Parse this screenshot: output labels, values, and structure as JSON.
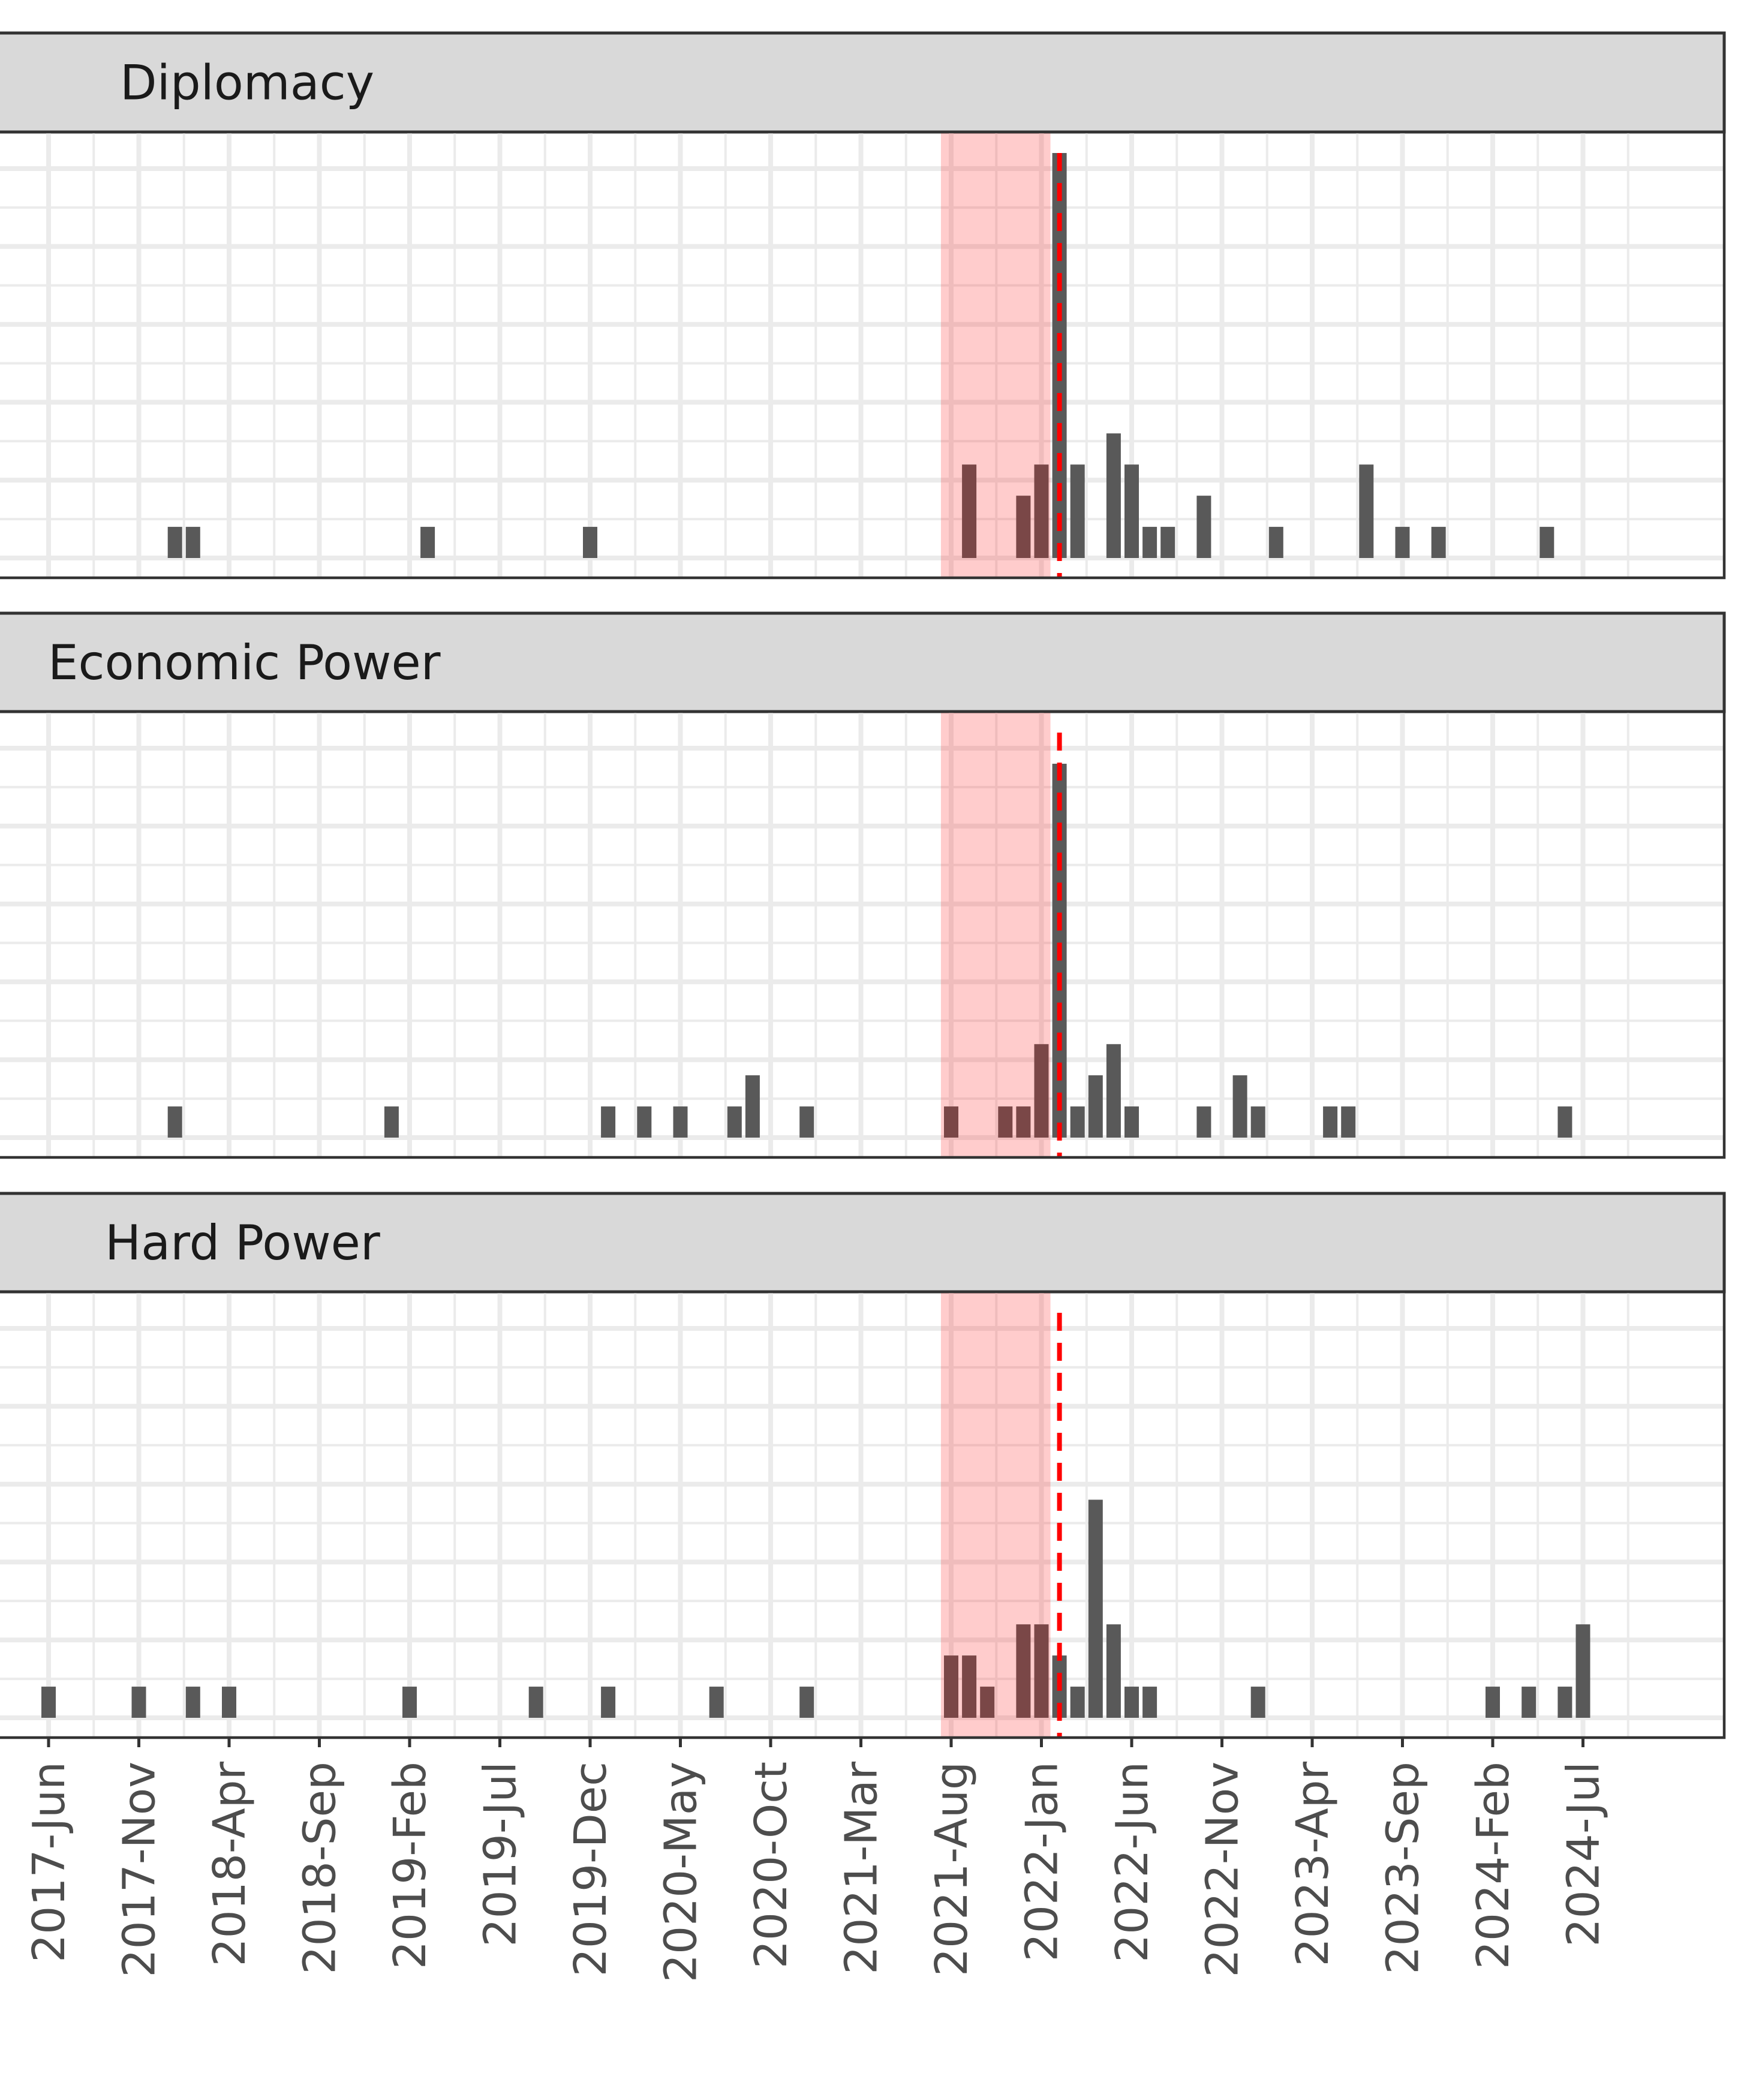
{
  "chart_data": {
    "type": "bar",
    "x_axis": {
      "ticks": [
        "2017-Jun",
        "2017-Nov",
        "2018-Apr",
        "2018-Sep",
        "2019-Feb",
        "2019-Jul",
        "2019-Dec",
        "2020-May",
        "2020-Oct",
        "2021-Mar",
        "2021-Aug",
        "2022-Jan",
        "2022-Jun",
        "2022-Nov",
        "2023-Apr",
        "2023-Sep",
        "2024-Feb",
        "2024-Jul"
      ],
      "range": [
        "2017-04",
        "2025-03"
      ]
    },
    "y_range": [
      0,
      13
    ],
    "grid": true,
    "shaded_region": {
      "start": "2021-08",
      "end": "2022-02",
      "color": "#ff0000"
    },
    "reference_line": {
      "x": "2022-02",
      "color": "#ff0000",
      "style": "dashed"
    },
    "facets": [
      {
        "label": "Diplomacy",
        "bars": [
          {
            "x": "2018-01",
            "y": 1
          },
          {
            "x": "2018-02",
            "y": 1
          },
          {
            "x": "2019-03",
            "y": 1
          },
          {
            "x": "2019-12",
            "y": 1
          },
          {
            "x": "2021-09",
            "y": 3
          },
          {
            "x": "2021-12",
            "y": 2
          },
          {
            "x": "2022-01",
            "y": 3
          },
          {
            "x": "2022-02",
            "y": 13
          },
          {
            "x": "2022-03",
            "y": 3
          },
          {
            "x": "2022-05",
            "y": 4
          },
          {
            "x": "2022-06",
            "y": 3
          },
          {
            "x": "2022-07",
            "y": 1
          },
          {
            "x": "2022-08",
            "y": 1
          },
          {
            "x": "2022-10",
            "y": 2
          },
          {
            "x": "2023-02",
            "y": 1
          },
          {
            "x": "2023-07",
            "y": 3
          },
          {
            "x": "2023-09",
            "y": 1
          },
          {
            "x": "2023-11",
            "y": 1
          },
          {
            "x": "2024-05",
            "y": 1
          }
        ]
      },
      {
        "label": "Economic Power",
        "bars": [
          {
            "x": "2018-01",
            "y": 1
          },
          {
            "x": "2019-01",
            "y": 1
          },
          {
            "x": "2020-01",
            "y": 1
          },
          {
            "x": "2020-03",
            "y": 1
          },
          {
            "x": "2020-05",
            "y": 1
          },
          {
            "x": "2020-08",
            "y": 1
          },
          {
            "x": "2020-09",
            "y": 2
          },
          {
            "x": "2020-12",
            "y": 1
          },
          {
            "x": "2021-08",
            "y": 1
          },
          {
            "x": "2021-11",
            "y": 1
          },
          {
            "x": "2021-12",
            "y": 1
          },
          {
            "x": "2022-01",
            "y": 3
          },
          {
            "x": "2022-02",
            "y": 12
          },
          {
            "x": "2022-03",
            "y": 1
          },
          {
            "x": "2022-04",
            "y": 2
          },
          {
            "x": "2022-05",
            "y": 3
          },
          {
            "x": "2022-06",
            "y": 1
          },
          {
            "x": "2022-10",
            "y": 1
          },
          {
            "x": "2022-12",
            "y": 2
          },
          {
            "x": "2023-01",
            "y": 1
          },
          {
            "x": "2023-05",
            "y": 1
          },
          {
            "x": "2023-06",
            "y": 1
          },
          {
            "x": "2024-06",
            "y": 1
          }
        ]
      },
      {
        "label": "Hard Power",
        "bars": [
          {
            "x": "2017-06",
            "y": 1
          },
          {
            "x": "2017-11",
            "y": 1
          },
          {
            "x": "2018-02",
            "y": 1
          },
          {
            "x": "2018-04",
            "y": 1
          },
          {
            "x": "2019-02",
            "y": 1
          },
          {
            "x": "2019-09",
            "y": 1
          },
          {
            "x": "2020-01",
            "y": 1
          },
          {
            "x": "2020-07",
            "y": 1
          },
          {
            "x": "2020-12",
            "y": 1
          },
          {
            "x": "2021-08",
            "y": 2
          },
          {
            "x": "2021-09",
            "y": 2
          },
          {
            "x": "2021-10",
            "y": 1
          },
          {
            "x": "2021-12",
            "y": 3
          },
          {
            "x": "2022-01",
            "y": 3
          },
          {
            "x": "2022-02",
            "y": 2
          },
          {
            "x": "2022-03",
            "y": 1
          },
          {
            "x": "2022-04",
            "y": 7
          },
          {
            "x": "2022-05",
            "y": 3
          },
          {
            "x": "2022-06",
            "y": 1
          },
          {
            "x": "2022-07",
            "y": 1
          },
          {
            "x": "2023-01",
            "y": 1
          },
          {
            "x": "2024-02",
            "y": 1
          },
          {
            "x": "2024-04",
            "y": 1
          },
          {
            "x": "2024-06",
            "y": 1
          },
          {
            "x": "2024-07",
            "y": 3
          }
        ]
      }
    ]
  }
}
